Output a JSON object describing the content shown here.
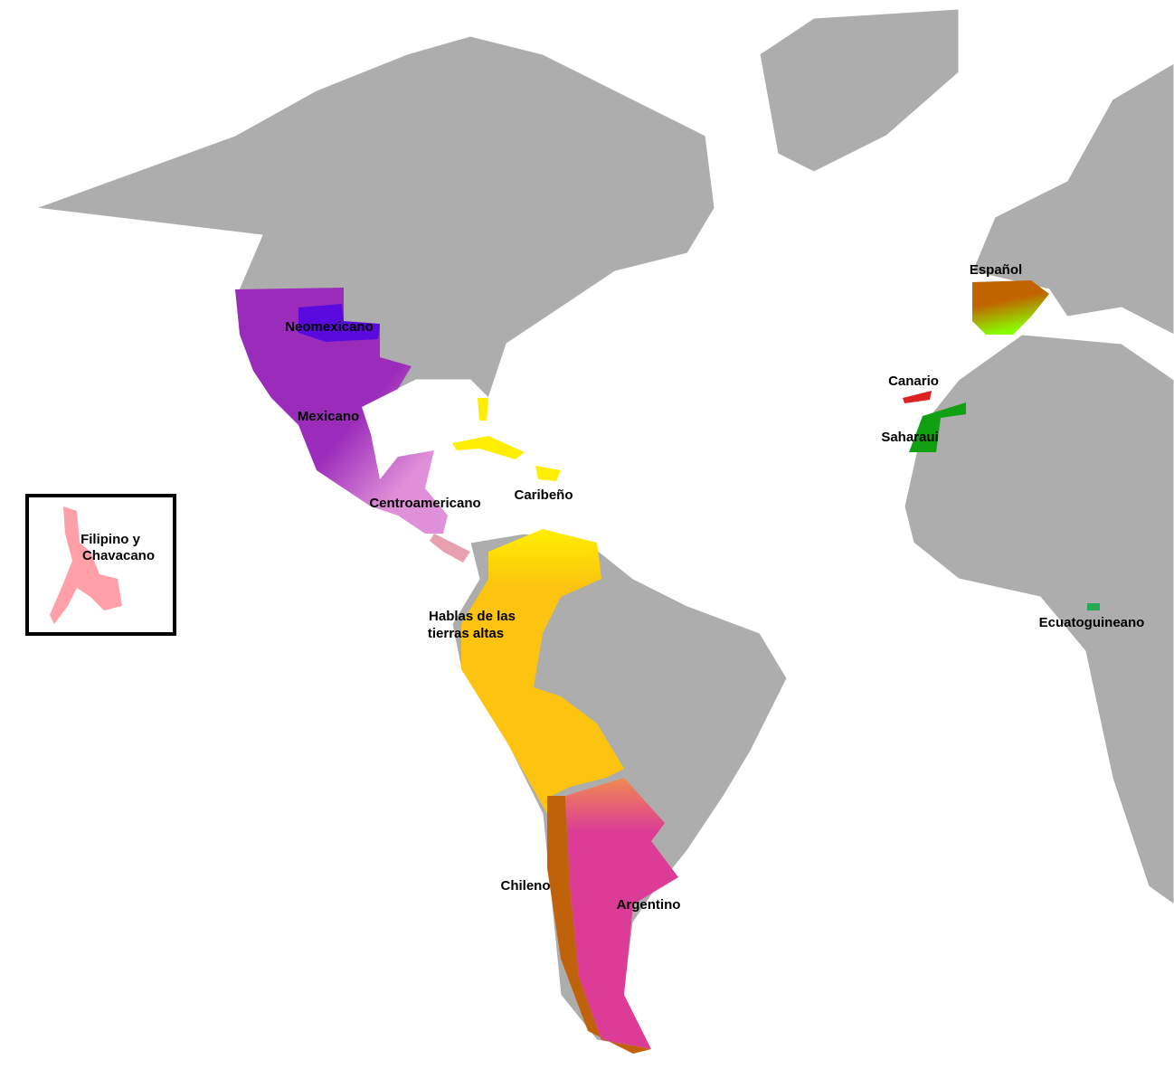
{
  "map": {
    "labels": {
      "neomexicano": "Neomexicano",
      "mexicano": "Mexicano",
      "centroamericano": "Centroamericano",
      "caribeno": "Caribeño",
      "hablas": [
        "Hablas de las",
        "tierras altas"
      ],
      "chileno": "Chileno",
      "argentino": "Argentino",
      "espanol": "Español",
      "canario": "Canario",
      "saharaui": "Saharaui",
      "ecuatoguineano": "Ecuatoguineano",
      "filipino": [
        "Filipino y",
        "Chavacano"
      ]
    }
  }
}
